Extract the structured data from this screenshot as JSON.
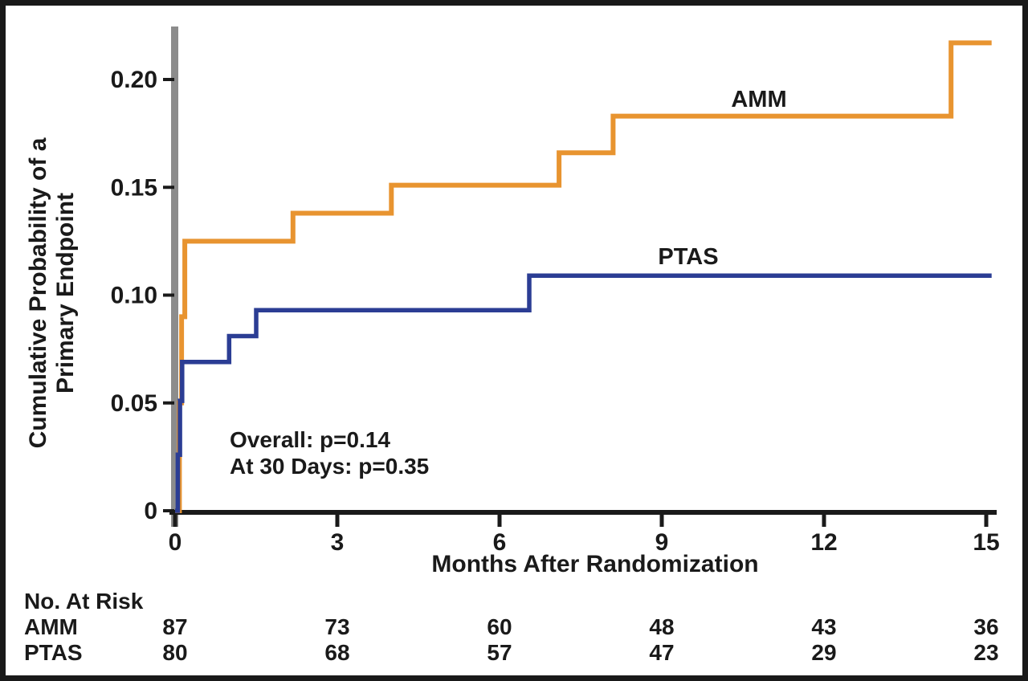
{
  "figure": {
    "background": "#ffffff",
    "border_color": "#191919",
    "axis_color": "#1a1a1a",
    "y_axis_bar_color": "#8c8c8c"
  },
  "chart_data": {
    "type": "line",
    "subtype": "kaplan-meier-step",
    "title": "",
    "xlabel": "Months After Randomization",
    "ylabel": "Cumulative Probability of a Primary Endpoint",
    "ylabel_line1": "Cumulative Probability of a",
    "ylabel_line2": "Primary Endpoint",
    "xlim": [
      0,
      15
    ],
    "ylim": [
      0,
      0.225
    ],
    "grid": false,
    "legend_position": "inline-labels",
    "x_ticks": [
      {
        "value": 0,
        "label": "0"
      },
      {
        "value": 3,
        "label": "3"
      },
      {
        "value": 6,
        "label": "6"
      },
      {
        "value": 9,
        "label": "9"
      },
      {
        "value": 12,
        "label": "12"
      },
      {
        "value": 15,
        "label": "15"
      }
    ],
    "y_ticks": [
      {
        "value": 0.2,
        "label": "0.20"
      },
      {
        "value": 0.15,
        "label": "0.15"
      },
      {
        "value": 0.1,
        "label": "0.10"
      },
      {
        "value": 0.05,
        "label": "0.05"
      },
      {
        "value": 0,
        "label": "0"
      }
    ],
    "series": [
      {
        "name": "AMM",
        "color": "#E89430",
        "stroke_width": 6,
        "points": [
          [
            0,
            0
          ],
          [
            0.08,
            0.05
          ],
          [
            0.12,
            0.09
          ],
          [
            0.18,
            0.125
          ],
          [
            2.18,
            0.138
          ],
          [
            4.0,
            0.151
          ],
          [
            7.1,
            0.166
          ],
          [
            8.1,
            0.183
          ],
          [
            14.35,
            0.217
          ],
          [
            15.1,
            0.217
          ]
        ]
      },
      {
        "name": "PTAS",
        "color": "#2B3D94",
        "stroke_width": 5.5,
        "points": [
          [
            0,
            0
          ],
          [
            0.05,
            0.026
          ],
          [
            0.09,
            0.051
          ],
          [
            0.13,
            0.069
          ],
          [
            1.0,
            0.081
          ],
          [
            1.5,
            0.093
          ],
          [
            6.55,
            0.109
          ],
          [
            15.1,
            0.109
          ]
        ]
      }
    ],
    "annotations": [
      {
        "text": "Overall: p=0.14"
      },
      {
        "text": "At 30 Days: p=0.35"
      }
    ]
  },
  "risk_table": {
    "header": "No. At Risk",
    "columns_months": [
      0,
      3,
      6,
      9,
      12,
      15
    ],
    "rows": [
      {
        "label": "AMM",
        "values": [
          "87",
          "73",
          "60",
          "48",
          "43",
          "36"
        ]
      },
      {
        "label": "PTAS",
        "values": [
          "80",
          "68",
          "57",
          "47",
          "29",
          "23"
        ]
      }
    ]
  }
}
